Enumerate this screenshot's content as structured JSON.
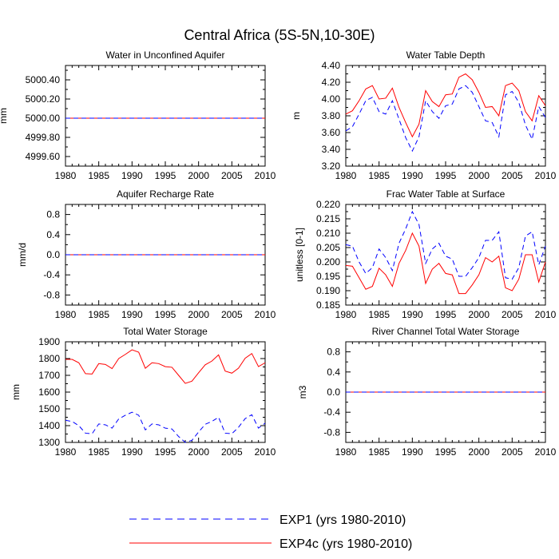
{
  "figure": {
    "title": "Central Africa (5S-5N,10-30E)"
  },
  "legend": [
    {
      "label": "EXP1 (yrs 1980-2010)",
      "color": "#0000ff",
      "style": "dashed"
    },
    {
      "label": "EXP4c (yrs 1980-2010)",
      "color": "#ff0000",
      "style": "solid"
    }
  ],
  "chart_data": [
    {
      "type": "line",
      "title": "Water in Unconfined Aquifer",
      "ylabel": "mm",
      "xlim": [
        1980,
        2010
      ],
      "ylim": [
        4999.5,
        5000.55
      ],
      "xticks": [
        1980,
        1985,
        1990,
        1995,
        2000,
        2005,
        2010
      ],
      "yticks": [
        4999.6,
        4999.8,
        5000.0,
        5000.2,
        5000.4
      ],
      "ytick_labels": [
        "4999.60",
        "4999.80",
        "5000.00",
        "5000.20",
        "5000.40"
      ],
      "x": [
        1980,
        2010
      ],
      "series": [
        {
          "name": "EXP4c",
          "color": "#ff0000",
          "style": "solid",
          "values": [
            5000.0,
            5000.0
          ]
        },
        {
          "name": "EXP1",
          "color": "#0000ff",
          "style": "dashed",
          "values": [
            5000.0,
            5000.0
          ]
        }
      ]
    },
    {
      "type": "line",
      "title": "Water Table Depth",
      "ylabel": "m",
      "xlim": [
        1980,
        2010
      ],
      "ylim": [
        3.2,
        4.4
      ],
      "xticks": [
        1980,
        1985,
        1990,
        1995,
        2000,
        2005,
        2010
      ],
      "yticks": [
        3.2,
        3.4,
        3.6,
        3.8,
        4.0,
        4.2,
        4.4
      ],
      "ytick_labels": [
        "3.20",
        "3.40",
        "3.60",
        "3.80",
        "4.00",
        "4.20",
        "4.40"
      ],
      "x": [
        1980,
        1981,
        1982,
        1983,
        1984,
        1985,
        1986,
        1987,
        1988,
        1989,
        1990,
        1991,
        1992,
        1993,
        1994,
        1995,
        1996,
        1997,
        1998,
        1999,
        2000,
        2001,
        2002,
        2003,
        2004,
        2005,
        2006,
        2007,
        2008,
        2009,
        2010
      ],
      "series": [
        {
          "name": "EXP4c",
          "color": "#ff0000",
          "style": "solid",
          "values": [
            3.82,
            3.86,
            3.98,
            4.12,
            4.16,
            4.0,
            4.01,
            4.13,
            3.9,
            3.72,
            3.55,
            3.7,
            4.1,
            3.97,
            3.91,
            4.05,
            4.06,
            4.26,
            4.3,
            4.23,
            4.08,
            3.9,
            3.91,
            3.8,
            4.16,
            4.19,
            4.1,
            3.85,
            3.74,
            4.04,
            3.92
          ]
        },
        {
          "name": "EXP1",
          "color": "#0000ff",
          "style": "dashed",
          "values": [
            3.62,
            3.67,
            3.82,
            3.98,
            4.02,
            3.85,
            3.82,
            3.98,
            3.76,
            3.54,
            3.38,
            3.55,
            3.98,
            3.85,
            3.77,
            3.92,
            3.94,
            4.12,
            4.16,
            4.08,
            3.91,
            3.74,
            3.72,
            3.55,
            4.05,
            4.09,
            3.96,
            3.69,
            3.52,
            3.91,
            3.78
          ]
        }
      ]
    },
    {
      "type": "line",
      "title": "Aquifer Recharge Rate",
      "ylabel": "mm/d",
      "xlim": [
        1980,
        2010
      ],
      "ylim": [
        -1.0,
        1.0
      ],
      "xticks": [
        1980,
        1985,
        1990,
        1995,
        2000,
        2005,
        2010
      ],
      "yticks": [
        -0.8,
        -0.4,
        0.0,
        0.4,
        0.8
      ],
      "ytick_labels": [
        "-0.8",
        "-0.4",
        "0.0",
        "0.4",
        "0.8"
      ],
      "x": [
        1980,
        2010
      ],
      "series": [
        {
          "name": "EXP4c",
          "color": "#ff0000",
          "style": "solid",
          "values": [
            0.0,
            0.0
          ]
        },
        {
          "name": "EXP1",
          "color": "#0000ff",
          "style": "dashed",
          "values": [
            0.0,
            0.0
          ]
        }
      ]
    },
    {
      "type": "line",
      "title": "Frac Water Table at Surface",
      "ylabel": "unitless [0-1]",
      "xlim": [
        1980,
        2010
      ],
      "ylim": [
        0.185,
        0.22
      ],
      "xticks": [
        1980,
        1985,
        1990,
        1995,
        2000,
        2005,
        2010
      ],
      "yticks": [
        0.185,
        0.19,
        0.195,
        0.2,
        0.205,
        0.21,
        0.215,
        0.22
      ],
      "ytick_labels": [
        "0.185",
        "0.190",
        "0.195",
        "0.200",
        "0.205",
        "0.210",
        "0.215",
        "0.220"
      ],
      "x": [
        1980,
        1981,
        1982,
        1983,
        1984,
        1985,
        1986,
        1987,
        1988,
        1989,
        1990,
        1991,
        1992,
        1993,
        1994,
        1995,
        1996,
        1997,
        1998,
        1999,
        2000,
        2001,
        2002,
        2003,
        2004,
        2005,
        2006,
        2007,
        2008,
        2009,
        2010
      ],
      "series": [
        {
          "name": "EXP4c",
          "color": "#ff0000",
          "style": "solid",
          "values": [
            0.1988,
            0.1985,
            0.1945,
            0.1905,
            0.1915,
            0.1978,
            0.1955,
            0.1915,
            0.1995,
            0.204,
            0.21,
            0.2055,
            0.1925,
            0.1975,
            0.1995,
            0.196,
            0.1955,
            0.189,
            0.189,
            0.192,
            0.1955,
            0.2015,
            0.2,
            0.202,
            0.191,
            0.19,
            0.194,
            0.2025,
            0.2025,
            0.193,
            0.2
          ]
        },
        {
          "name": "EXP1",
          "color": "#0000ff",
          "style": "dashed",
          "values": [
            0.206,
            0.2055,
            0.2,
            0.196,
            0.198,
            0.2045,
            0.2015,
            0.197,
            0.2065,
            0.2115,
            0.2175,
            0.213,
            0.1995,
            0.2045,
            0.2065,
            0.202,
            0.201,
            0.195,
            0.195,
            0.198,
            0.2015,
            0.2075,
            0.2075,
            0.2105,
            0.1945,
            0.194,
            0.198,
            0.209,
            0.2105,
            0.199,
            0.2055
          ]
        }
      ]
    },
    {
      "type": "line",
      "title": "Total Water Storage",
      "ylabel": "mm",
      "xlim": [
        1980,
        2010
      ],
      "ylim": [
        1300,
        1900
      ],
      "xticks": [
        1980,
        1985,
        1990,
        1995,
        2000,
        2005,
        2010
      ],
      "yticks": [
        1300,
        1400,
        1500,
        1600,
        1700,
        1800,
        1900
      ],
      "ytick_labels": [
        "1300",
        "1400",
        "1500",
        "1600",
        "1700",
        "1800",
        "1900"
      ],
      "x": [
        1980,
        1981,
        1982,
        1983,
        1984,
        1985,
        1986,
        1987,
        1988,
        1989,
        1990,
        1991,
        1992,
        1993,
        1994,
        1995,
        1996,
        1997,
        1998,
        1999,
        2000,
        2001,
        2002,
        2003,
        2004,
        2005,
        2006,
        2007,
        2008,
        2009,
        2010
      ],
      "series": [
        {
          "name": "EXP4c",
          "color": "#ff0000",
          "style": "solid",
          "values": [
            1795,
            1795,
            1775,
            1710,
            1708,
            1770,
            1765,
            1740,
            1800,
            1825,
            1852,
            1838,
            1742,
            1775,
            1770,
            1752,
            1748,
            1700,
            1652,
            1665,
            1715,
            1763,
            1785,
            1822,
            1725,
            1713,
            1743,
            1802,
            1830,
            1752,
            1775
          ]
        },
        {
          "name": "EXP1",
          "color": "#0000ff",
          "style": "dashed",
          "values": [
            1432,
            1425,
            1400,
            1355,
            1352,
            1410,
            1405,
            1385,
            1440,
            1462,
            1480,
            1462,
            1375,
            1410,
            1405,
            1385,
            1380,
            1335,
            1300,
            1312,
            1362,
            1408,
            1425,
            1450,
            1355,
            1352,
            1390,
            1442,
            1465,
            1385,
            1415
          ]
        }
      ]
    },
    {
      "type": "line",
      "title": "River Channel Total Water Storage",
      "ylabel": "m3",
      "xlim": [
        1980,
        2010
      ],
      "ylim": [
        -1.0,
        1.0
      ],
      "xticks": [
        1980,
        1985,
        1990,
        1995,
        2000,
        2005,
        2010
      ],
      "yticks": [
        -0.8,
        -0.4,
        0.0,
        0.4,
        0.8
      ],
      "ytick_labels": [
        "-0.8",
        "-0.4",
        "0.0",
        "0.4",
        "0.8"
      ],
      "x": [
        1980,
        2010
      ],
      "series": [
        {
          "name": "EXP4c",
          "color": "#ff0000",
          "style": "solid",
          "values": [
            0.0,
            0.0
          ]
        },
        {
          "name": "EXP1",
          "color": "#0000ff",
          "style": "dashed",
          "values": [
            0.0,
            0.0
          ]
        }
      ]
    }
  ]
}
